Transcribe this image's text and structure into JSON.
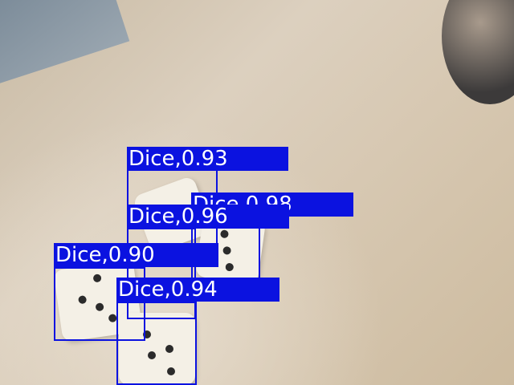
{
  "detections": [
    {
      "label": "Dice,0.93"
    },
    {
      "label": "Dice,0.98"
    },
    {
      "label": "Dice,0.96"
    },
    {
      "label": "Dice,0.90"
    },
    {
      "label": "Dice,0.94"
    }
  ],
  "colors": {
    "box": "#0b12e0",
    "label_text": "#ffffff"
  }
}
